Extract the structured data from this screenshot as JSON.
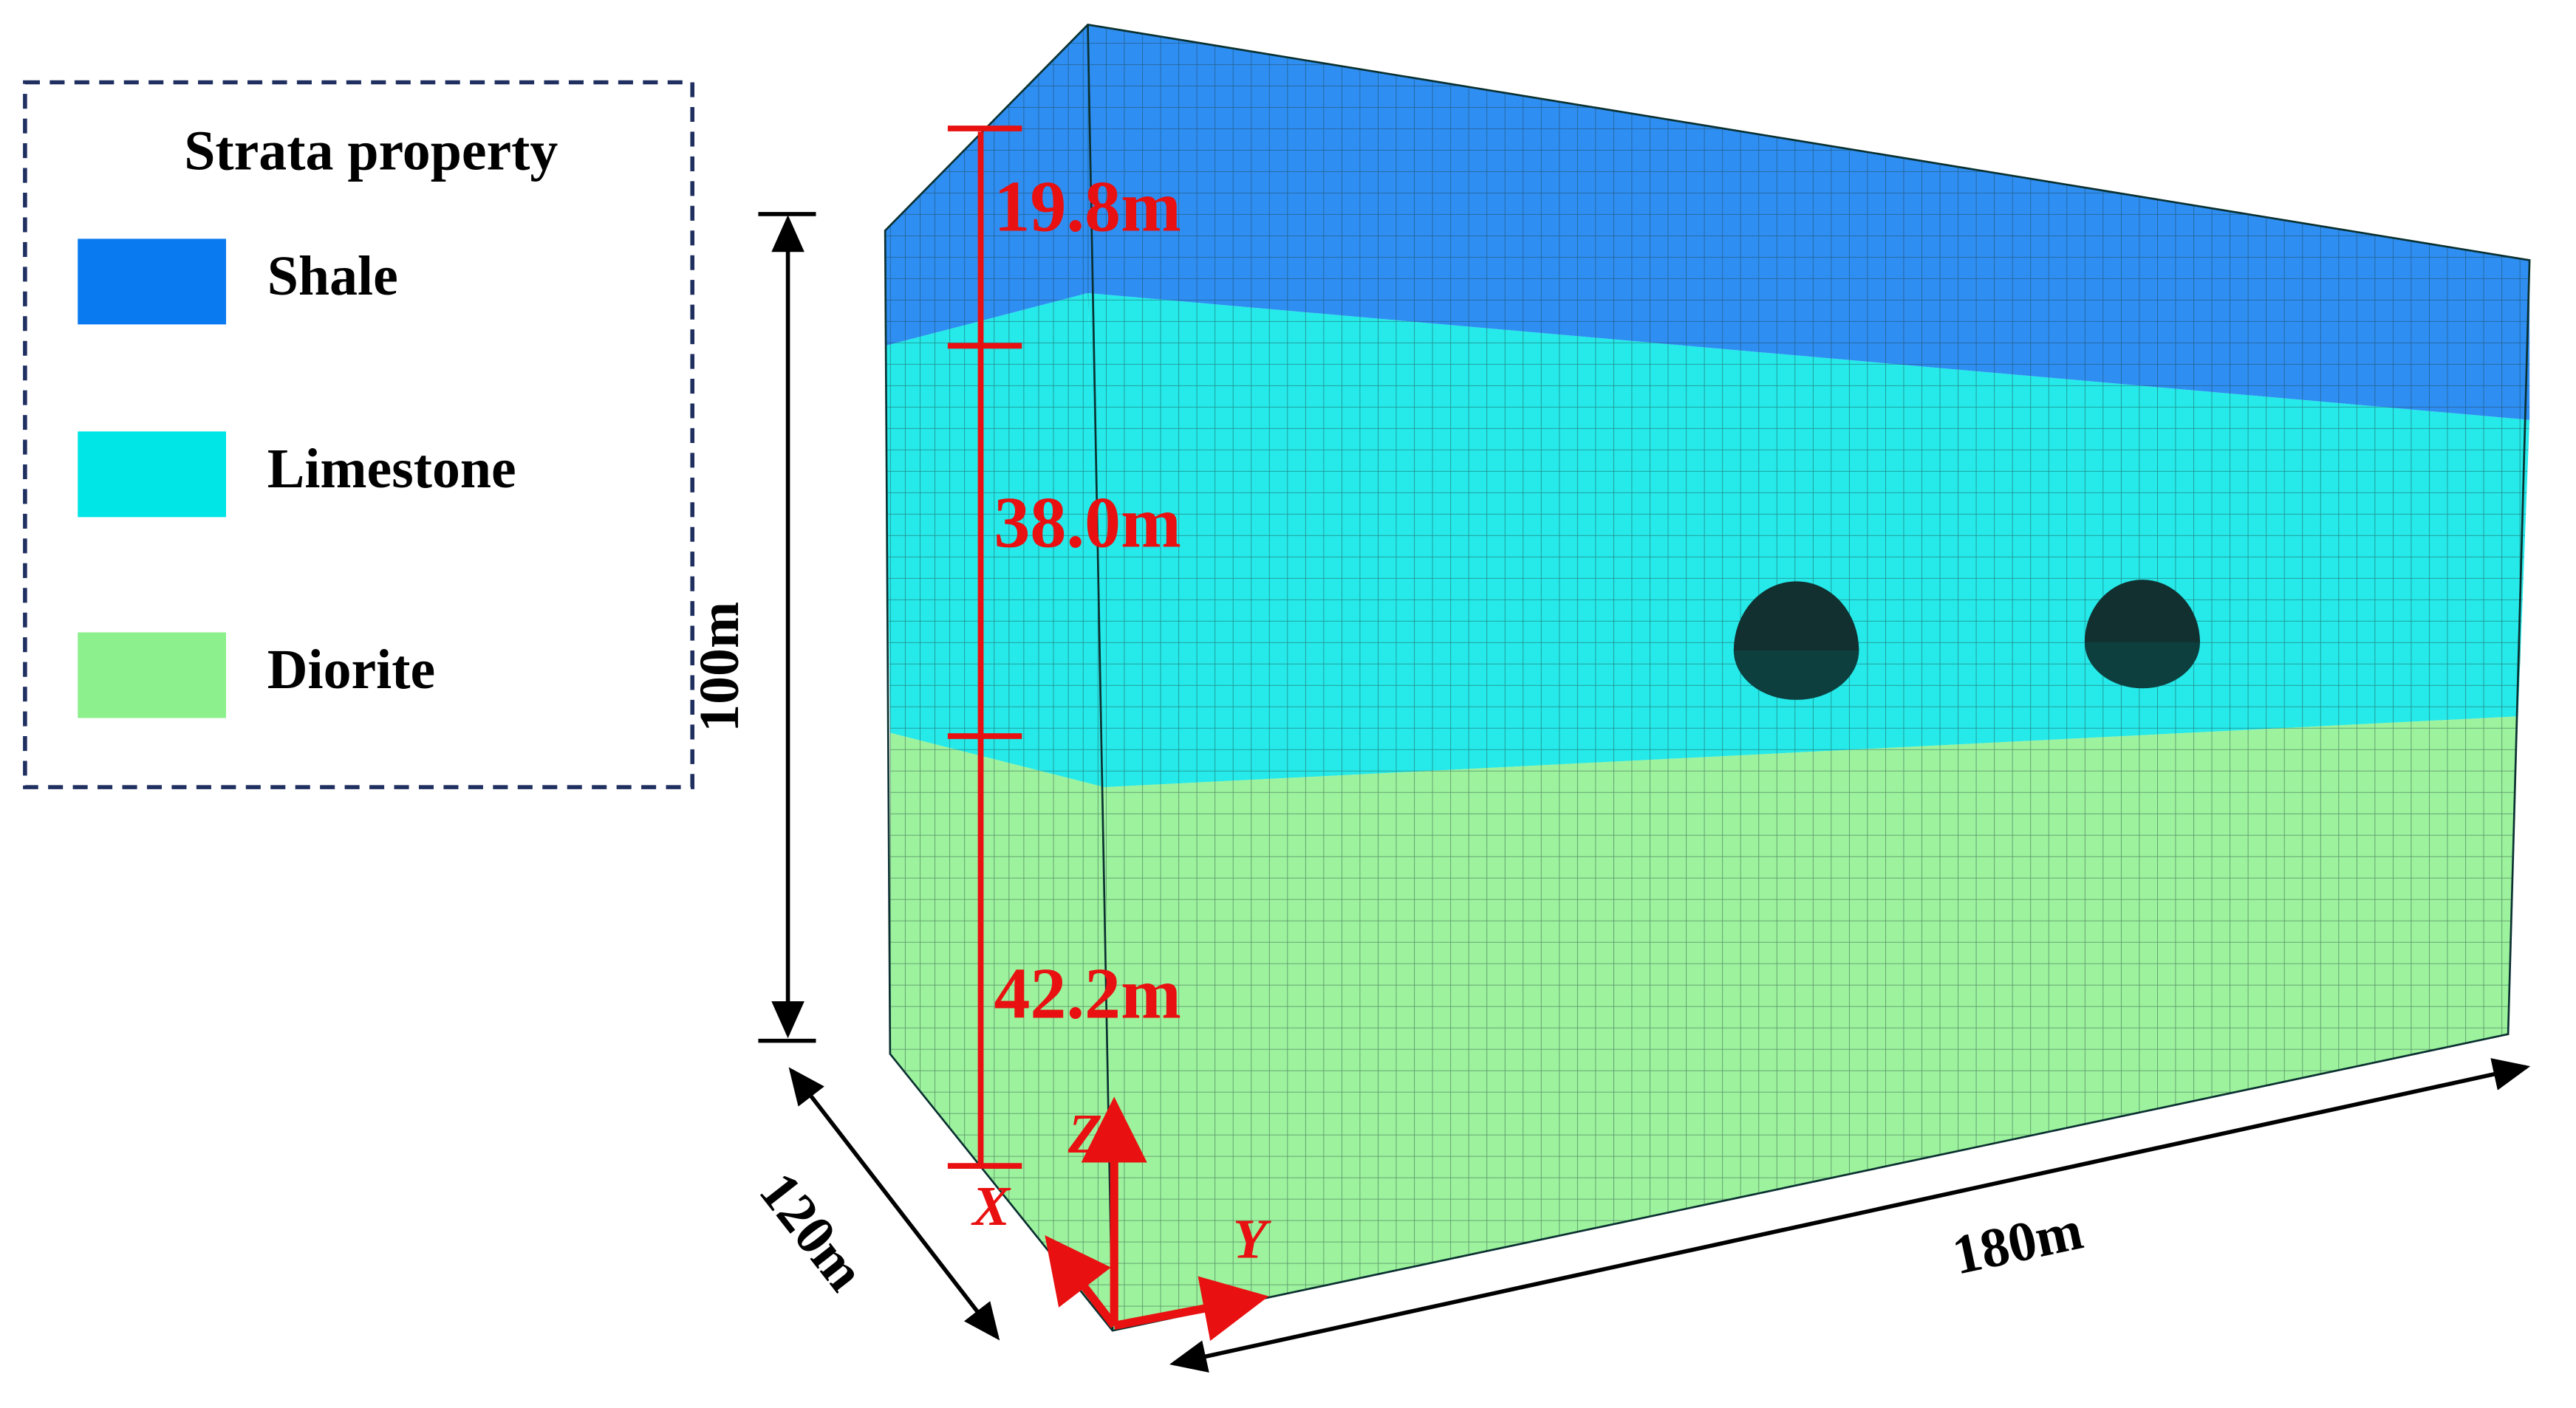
{
  "legend": {
    "title": "Strata property",
    "items": [
      {
        "label": "Shale",
        "color": "#0a7af0"
      },
      {
        "label": "Limestone",
        "color": "#00e5e5"
      },
      {
        "label": "Diorite",
        "color": "#8cf08c"
      }
    ]
  },
  "dimensions": {
    "layers": [
      "19.8m",
      "38.0m",
      "42.2m"
    ],
    "height": "100m",
    "width": "120m",
    "length": "180m"
  },
  "axes": {
    "x": "X",
    "y": "Y",
    "z": "Z"
  }
}
